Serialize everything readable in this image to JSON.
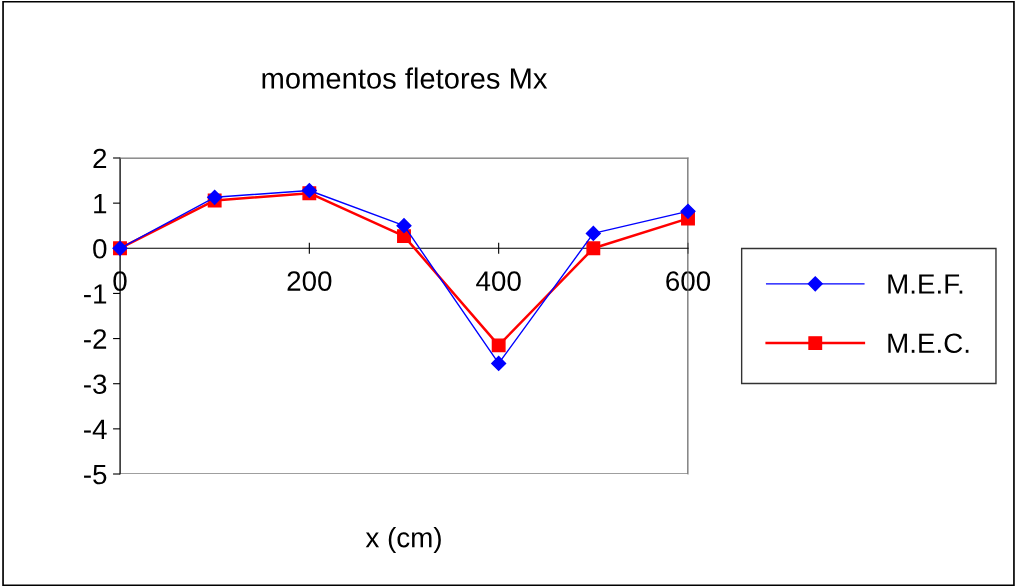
{
  "chart_data": {
    "type": "line",
    "title": "momentos fletores Mx",
    "xlabel": "x (cm)",
    "x": [
      0,
      100,
      200,
      300,
      400,
      500,
      600
    ],
    "series": [
      {
        "name": "M.E.F.",
        "color": "#0000ff",
        "marker": "diamond",
        "values": [
          0,
          1.13,
          1.28,
          0.5,
          -2.55,
          0.33,
          0.82
        ]
      },
      {
        "name": "M.E.C.",
        "color": "#ff0000",
        "marker": "square",
        "values": [
          0,
          1.06,
          1.22,
          0.27,
          -2.15,
          0,
          0.66
        ]
      }
    ],
    "xlim": [
      0,
      600
    ],
    "xticks": [
      0,
      200,
      400,
      600
    ],
    "ylim": [
      -5,
      2
    ],
    "yticks": [
      -5,
      -4,
      -3,
      -2,
      -1,
      0,
      1,
      2
    ],
    "grid": false,
    "legend": "right",
    "line_style": "solid"
  }
}
